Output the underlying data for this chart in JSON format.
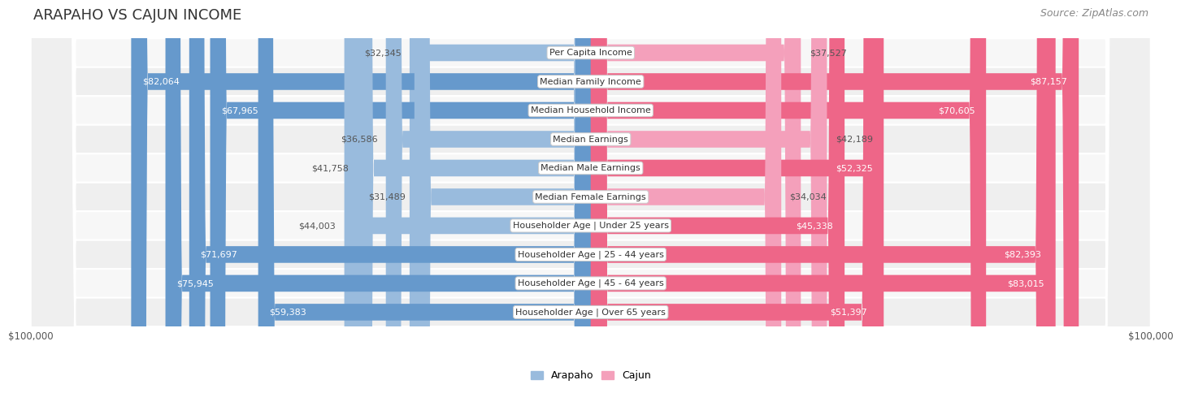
{
  "title": "ARAPAHO VS CAJUN INCOME",
  "source": "Source: ZipAtlas.com",
  "max_value": 100000,
  "categories": [
    "Per Capita Income",
    "Median Family Income",
    "Median Household Income",
    "Median Earnings",
    "Median Male Earnings",
    "Median Female Earnings",
    "Householder Age | Under 25 years",
    "Householder Age | 25 - 44 years",
    "Householder Age | 45 - 64 years",
    "Householder Age | Over 65 years"
  ],
  "arapaho": [
    32345,
    82064,
    67965,
    36586,
    41758,
    31489,
    44003,
    71697,
    75945,
    59383
  ],
  "cajun": [
    37527,
    87157,
    70605,
    42189,
    52325,
    34034,
    45338,
    82393,
    83015,
    51397
  ],
  "arapaho_color_dark": "#6699cc",
  "arapaho_color_light": "#99bbdd",
  "cajun_color_dark": "#ee6688",
  "cajun_color_light": "#f4a0bb",
  "row_bg_odd": "#f7f7f7",
  "row_bg_even": "#efefef",
  "bar_height": 0.58,
  "inside_label_threshold": 0.45,
  "title_fontsize": 13,
  "source_fontsize": 9,
  "bar_label_fontsize": 8,
  "category_fontsize": 8,
  "legend_fontsize": 9,
  "axis_label_fontsize": 8.5
}
